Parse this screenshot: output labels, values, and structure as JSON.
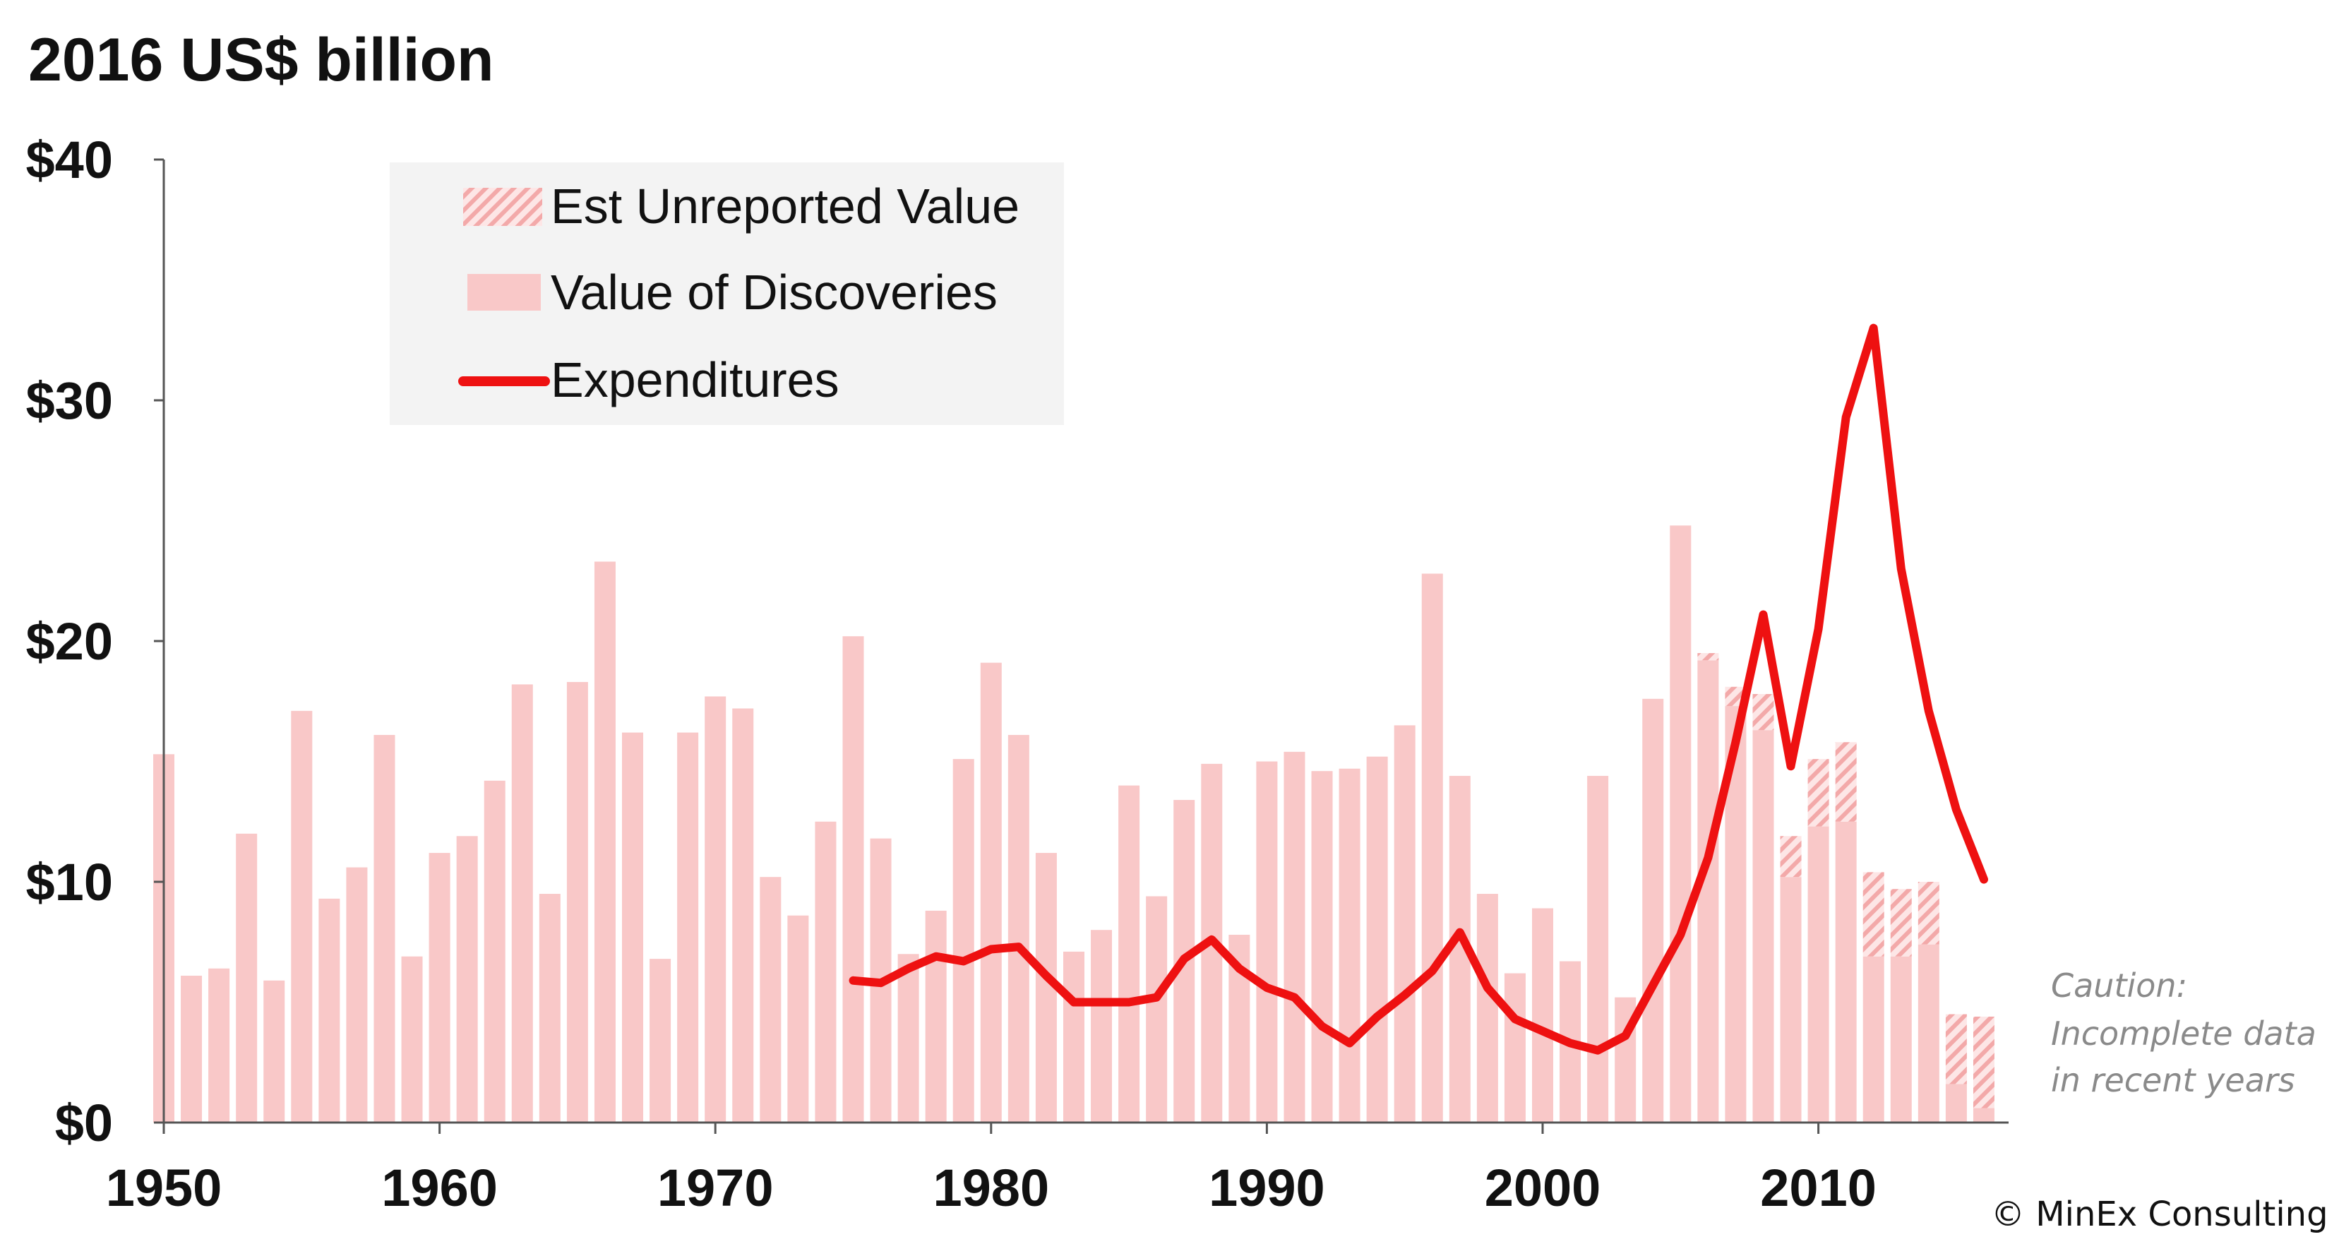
{
  "colors": {
    "discovery": "#f9c8c8",
    "unreported_hatch": "#f3a9a9",
    "expenditure": "#ee1111",
    "axis": "#555555",
    "legend_bg": "#f3f3f3"
  },
  "chart_data": {
    "type": "bar",
    "title": "2016 US$ billion",
    "ylim": [
      0,
      40
    ],
    "y_ticks": [
      {
        "value": 0,
        "label": "$0"
      },
      {
        "value": 10,
        "label": "$10"
      },
      {
        "value": 20,
        "label": "$20"
      },
      {
        "value": 30,
        "label": "$30"
      },
      {
        "value": 40,
        "label": "$40"
      }
    ],
    "x_ticks": [
      {
        "value": 1950,
        "label": "1950"
      },
      {
        "value": 1960,
        "label": "1960"
      },
      {
        "value": 1970,
        "label": "1970"
      },
      {
        "value": 1980,
        "label": "1980"
      },
      {
        "value": 1990,
        "label": "1990"
      },
      {
        "value": 2000,
        "label": "2000"
      },
      {
        "value": 2010,
        "label": "2010"
      }
    ],
    "legend": [
      {
        "key": "unreported",
        "label": "Est Unreported Value"
      },
      {
        "key": "discoveries",
        "label": "Value of Discoveries"
      },
      {
        "key": "expenditures",
        "label": "Expenditures"
      }
    ],
    "years": [
      1950,
      1951,
      1952,
      1953,
      1954,
      1955,
      1956,
      1957,
      1958,
      1959,
      1960,
      1961,
      1962,
      1963,
      1964,
      1965,
      1966,
      1967,
      1968,
      1969,
      1970,
      1971,
      1972,
      1973,
      1974,
      1975,
      1976,
      1977,
      1978,
      1979,
      1980,
      1981,
      1982,
      1983,
      1984,
      1985,
      1986,
      1987,
      1988,
      1989,
      1990,
      1991,
      1992,
      1993,
      1994,
      1995,
      1996,
      1997,
      1998,
      1999,
      2000,
      2001,
      2002,
      2003,
      2004,
      2005,
      2006,
      2007,
      2008,
      2009,
      2010,
      2011,
      2012,
      2013,
      2014,
      2015,
      2016
    ],
    "series": [
      {
        "name": "Value of Discoveries",
        "type": "bar",
        "values": [
          15.3,
          6.1,
          6.4,
          12.0,
          5.9,
          17.1,
          9.3,
          10.6,
          16.1,
          6.9,
          11.2,
          11.9,
          14.2,
          18.2,
          9.5,
          18.3,
          23.3,
          16.2,
          6.8,
          16.2,
          17.7,
          17.2,
          10.2,
          8.6,
          12.5,
          20.2,
          11.8,
          7.0,
          8.8,
          15.1,
          19.1,
          16.1,
          11.2,
          7.1,
          8.0,
          14.0,
          9.4,
          13.4,
          14.9,
          7.8,
          15.0,
          15.4,
          14.6,
          14.7,
          15.2,
          16.5,
          22.8,
          14.4,
          9.5,
          6.2,
          8.9,
          6.7,
          14.4,
          5.2,
          17.6,
          24.8,
          19.2,
          17.3,
          16.3,
          10.2,
          12.3,
          12.5,
          6.9,
          6.9,
          7.4,
          1.6,
          0.6
        ]
      },
      {
        "name": "Est Unreported Value",
        "type": "stacked-bar",
        "values": [
          0,
          0,
          0,
          0,
          0,
          0,
          0,
          0,
          0,
          0,
          0,
          0,
          0,
          0,
          0,
          0,
          0,
          0,
          0,
          0,
          0,
          0,
          0,
          0,
          0,
          0,
          0,
          0,
          0,
          0,
          0,
          0,
          0,
          0,
          0,
          0,
          0,
          0,
          0,
          0,
          0,
          0,
          0,
          0,
          0,
          0,
          0,
          0,
          0,
          0,
          0,
          0,
          0,
          0,
          0,
          0,
          0.3,
          0.8,
          1.5,
          1.7,
          2.8,
          3.3,
          3.5,
          2.8,
          2.6,
          2.9,
          3.8
        ]
      },
      {
        "name": "Expenditures",
        "type": "line",
        "x": [
          1975,
          1976,
          1977,
          1978,
          1979,
          1980,
          1981,
          1982,
          1983,
          1984,
          1985,
          1986,
          1987,
          1988,
          1989,
          1990,
          1991,
          1992,
          1993,
          1994,
          1995,
          1996,
          1997,
          1998,
          1999,
          2000,
          2001,
          2002,
          2003,
          2004,
          2005,
          2006,
          2007,
          2008,
          2009,
          2010,
          2011,
          2012,
          2013,
          2014,
          2015,
          2016
        ],
        "values": [
          5.9,
          5.8,
          6.4,
          6.9,
          6.7,
          7.2,
          7.3,
          6.1,
          5.0,
          5.0,
          5.0,
          5.2,
          6.8,
          7.6,
          6.4,
          5.6,
          5.2,
          4.0,
          3.3,
          4.4,
          5.3,
          6.3,
          7.9,
          5.6,
          4.3,
          3.8,
          3.3,
          3.0,
          3.6,
          5.7,
          7.8,
          11.0,
          15.8,
          21.1,
          14.8,
          20.5,
          29.3,
          33.0,
          23.0,
          17.1,
          13.0,
          10.1
        ]
      }
    ],
    "annotations": {
      "caution": [
        "Caution:",
        "Incomplete data",
        "in recent years"
      ],
      "credit": "© MinEx Consulting"
    }
  }
}
